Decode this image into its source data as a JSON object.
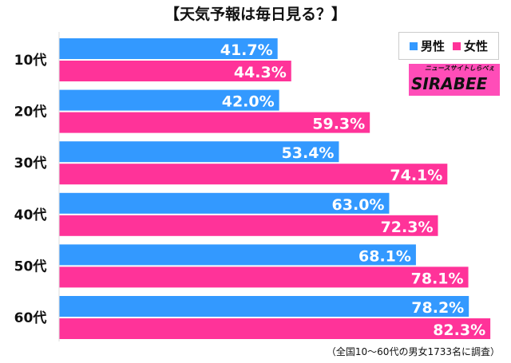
{
  "chart_data": {
    "type": "bar",
    "orientation": "horizontal",
    "title": "【天気予報は毎日見る？】",
    "categories": [
      "10代",
      "20代",
      "30代",
      "40代",
      "50代",
      "60代"
    ],
    "series": [
      {
        "name": "男性",
        "color": "#3399ff",
        "values": [
          41.7,
          42.0,
          53.4,
          63.0,
          68.1,
          78.2
        ]
      },
      {
        "name": "女性",
        "color": "#ff3399",
        "values": [
          44.3,
          59.3,
          74.1,
          72.3,
          78.1,
          82.3
        ]
      }
    ],
    "value_suffix": "%",
    "xlim": [
      0,
      85
    ],
    "legend_position": "top-right",
    "footnote": "（全国10～60代の男女1733名に調査）"
  },
  "logo": {
    "name": "SIRABEE",
    "tagline": "ニュースサイトしらべぇ"
  }
}
